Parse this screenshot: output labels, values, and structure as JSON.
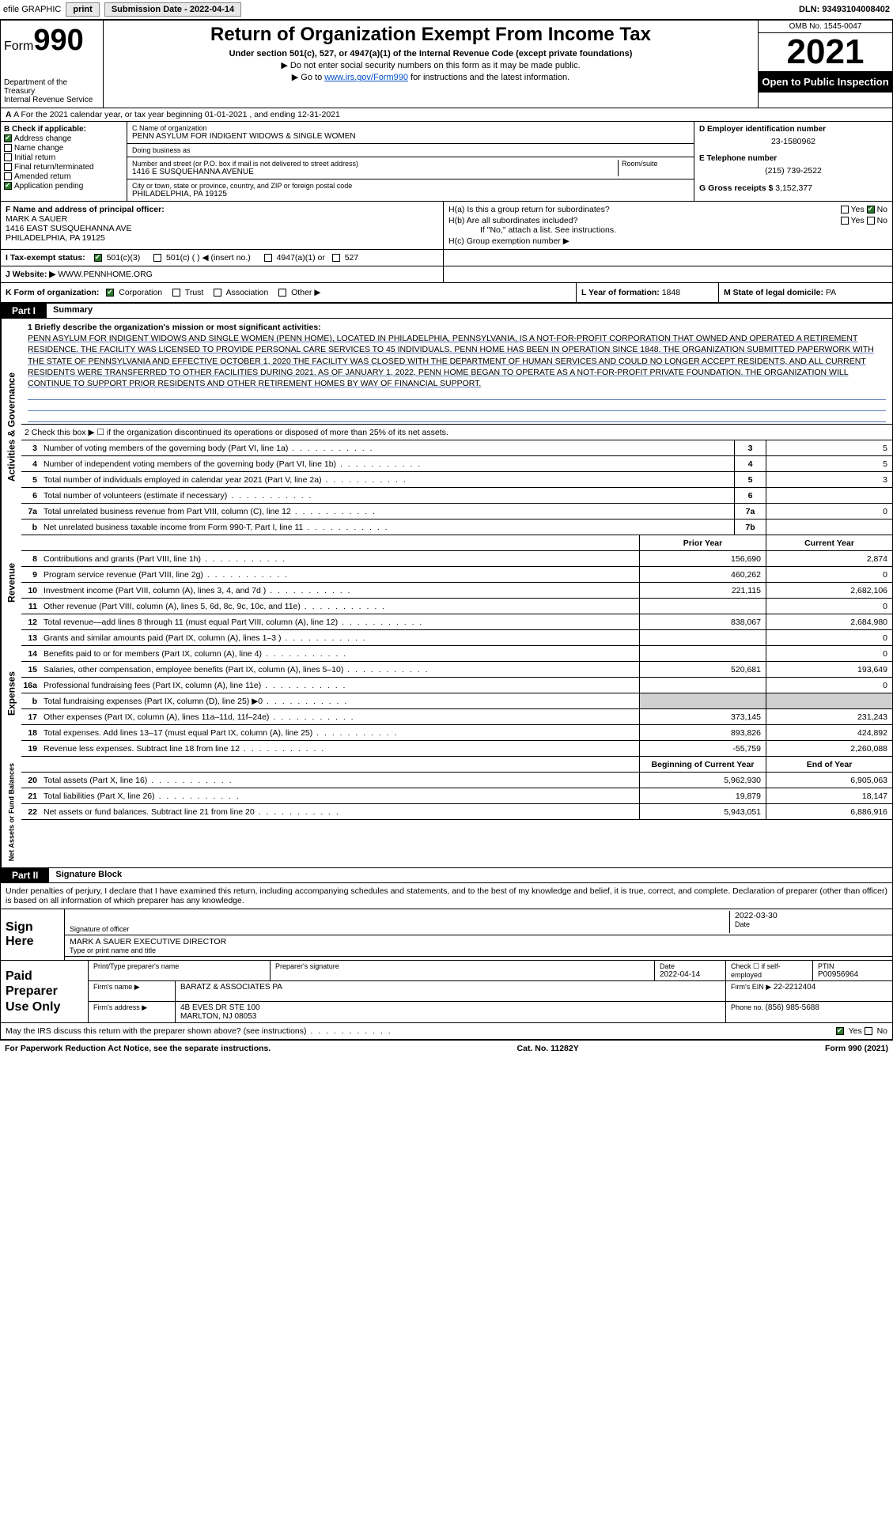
{
  "topbar": {
    "efile": "efile GRAPHIC",
    "print": "print",
    "subdate_lbl": "Submission Date - ",
    "subdate": "2022-04-14",
    "dln_lbl": "DLN: ",
    "dln": "93493104008402"
  },
  "header": {
    "form_prefix": "Form",
    "form_no": "990",
    "dept": "Department of the Treasury",
    "irs": "Internal Revenue Service",
    "title": "Return of Organization Exempt From Income Tax",
    "sub1": "Under section 501(c), 527, or 4947(a)(1) of the Internal Revenue Code (except private foundations)",
    "sub2a": "▶ Do not enter social security numbers on this form as it may be made public.",
    "sub2b_pre": "▶ Go to ",
    "sub2b_link": "www.irs.gov/Form990",
    "sub2b_post": " for instructions and the latest information.",
    "omb": "OMB No. 1545-0047",
    "year": "2021",
    "openpub": "Open to Public Inspection"
  },
  "rowA": "A For the 2021 calendar year, or tax year beginning 01-01-2021   , and ending 12-31-2021",
  "colB": {
    "hdr": "B Check if applicable:",
    "addr": "Address change",
    "name": "Name change",
    "init": "Initial return",
    "final": "Final return/terminated",
    "amend": "Amended return",
    "app": "Application pending"
  },
  "colC": {
    "name_lbl": "C Name of organization",
    "name": "PENN ASYLUM FOR INDIGENT WIDOWS & SINGLE WOMEN",
    "dba_lbl": "Doing business as",
    "dba": "",
    "street_lbl": "Number and street (or P.O. box if mail is not delivered to street address)",
    "room_lbl": "Room/suite",
    "street": "1416 E SUSQUEHANNA AVENUE",
    "city_lbl": "City or town, state or province, country, and ZIP or foreign postal code",
    "city": "PHILADELPHIA, PA  19125"
  },
  "colD": {
    "ein_lbl": "D Employer identification number",
    "ein": "23-1580962",
    "tel_lbl": "E Telephone number",
    "tel": "(215) 739-2522",
    "gross_lbl": "G Gross receipts $ ",
    "gross": "3,152,377"
  },
  "blkF": {
    "f_lbl": "F Name and address of principal officer:",
    "f_name": "MARK A SAUER",
    "f_addr1": "1416 EAST SUSQUEHANNA AVE",
    "f_addr2": "PHILADELPHIA, PA  19125",
    "ha": "H(a)  Is this a group return for subordinates?",
    "hb": "H(b)  Are all subordinates included?",
    "hnote": "If \"No,\" attach a list. See instructions.",
    "hc": "H(c)  Group exemption number ▶",
    "yes": "Yes",
    "no": "No"
  },
  "blkI": {
    "lbl": "I  Tax-exempt status:",
    "o1": "501(c)(3)",
    "o2": "501(c) (  ) ◀ (insert no.)",
    "o3": "4947(a)(1) or",
    "o4": "527"
  },
  "blkJ": {
    "lbl": "J  Website: ▶",
    "val": "WWW.PENNHOME.ORG"
  },
  "blkK": {
    "lbl": "K Form of organization:",
    "corp": "Corporation",
    "trust": "Trust",
    "assoc": "Association",
    "other": "Other ▶",
    "L_lbl": "L Year of formation: ",
    "L_val": "1848",
    "M_lbl": "M State of legal domicile: ",
    "M_val": "PA"
  },
  "part1": {
    "hdr": "Part I",
    "title": "Summary",
    "vtab_ag": "Activities & Governance",
    "vtab_rev": "Revenue",
    "vtab_exp": "Expenses",
    "vtab_net": "Net Assets or Fund Balances",
    "l1_lbl": "1  Briefly describe the organization's mission or most significant activities:",
    "l1_text": "PENN ASYLUM FOR INDIGENT WIDOWS AND SINGLE WOMEN (PENN HOME), LOCATED IN PHILADELPHIA, PENNSYLVANIA, IS A NOT-FOR-PROFIT CORPORATION THAT OWNED AND OPERATED A RETIREMENT RESIDENCE. THE FACILITY WAS LICENSED TO PROVIDE PERSONAL CARE SERVICES TO 45 INDIVIDUALS. PENN HOME HAS BEEN IN OPERATION SINCE 1848. THE ORGANIZATION SUBMITTED PAPERWORK WITH THE STATE OF PENNSYLVANIA AND EFFECTIVE OCTOBER 1, 2020 THE FACILITY WAS CLOSED WITH THE DEPARTMENT OF HUMAN SERVICES AND COULD NO LONGER ACCEPT RESIDENTS, AND ALL CURRENT RESIDENTS WERE TRANSFERRED TO OTHER FACILITIES DURING 2021. AS OF JANUARY 1, 2022, PENN HOME BEGAN TO OPERATE AS A NOT-FOR-PROFIT PRIVATE FOUNDATION. THE ORGANIZATION WILL CONTINUE TO SUPPORT PRIOR RESIDENTS AND OTHER RETIREMENT HOMES BY WAY OF FINANCIAL SUPPORT.",
    "l2": "2  Check this box ▶ ☐ if the organization discontinued its operations or disposed of more than 25% of its net assets.",
    "prior": "Prior Year",
    "current": "Current Year",
    "boy": "Beginning of Current Year",
    "eoy": "End of Year",
    "lines_ag": [
      {
        "n": "3",
        "d": "Number of voting members of the governing body (Part VI, line 1a)",
        "b": "3",
        "v": "5"
      },
      {
        "n": "4",
        "d": "Number of independent voting members of the governing body (Part VI, line 1b)",
        "b": "4",
        "v": "5"
      },
      {
        "n": "5",
        "d": "Total number of individuals employed in calendar year 2021 (Part V, line 2a)",
        "b": "5",
        "v": "3"
      },
      {
        "n": "6",
        "d": "Total number of volunteers (estimate if necessary)",
        "b": "6",
        "v": ""
      },
      {
        "n": "7a",
        "d": "Total unrelated business revenue from Part VIII, column (C), line 12",
        "b": "7a",
        "v": "0"
      },
      {
        "n": "b",
        "d": "Net unrelated business taxable income from Form 990-T, Part I, line 11",
        "b": "7b",
        "v": ""
      }
    ],
    "lines_rev": [
      {
        "n": "8",
        "d": "Contributions and grants (Part VIII, line 1h)",
        "p": "156,690",
        "c": "2,874"
      },
      {
        "n": "9",
        "d": "Program service revenue (Part VIII, line 2g)",
        "p": "460,262",
        "c": "0"
      },
      {
        "n": "10",
        "d": "Investment income (Part VIII, column (A), lines 3, 4, and 7d )",
        "p": "221,115",
        "c": "2,682,106"
      },
      {
        "n": "11",
        "d": "Other revenue (Part VIII, column (A), lines 5, 6d, 8c, 9c, 10c, and 11e)",
        "p": "",
        "c": "0"
      },
      {
        "n": "12",
        "d": "Total revenue—add lines 8 through 11 (must equal Part VIII, column (A), line 12)",
        "p": "838,067",
        "c": "2,684,980"
      }
    ],
    "lines_exp": [
      {
        "n": "13",
        "d": "Grants and similar amounts paid (Part IX, column (A), lines 1–3 )",
        "p": "",
        "c": "0"
      },
      {
        "n": "14",
        "d": "Benefits paid to or for members (Part IX, column (A), line 4)",
        "p": "",
        "c": "0"
      },
      {
        "n": "15",
        "d": "Salaries, other compensation, employee benefits (Part IX, column (A), lines 5–10)",
        "p": "520,681",
        "c": "193,649"
      },
      {
        "n": "16a",
        "d": "Professional fundraising fees (Part IX, column (A), line 11e)",
        "p": "",
        "c": "0"
      },
      {
        "n": "b",
        "d": "Total fundraising expenses (Part IX, column (D), line 25) ▶0",
        "p": "grey",
        "c": "grey"
      },
      {
        "n": "17",
        "d": "Other expenses (Part IX, column (A), lines 11a–11d, 11f–24e)",
        "p": "373,145",
        "c": "231,243"
      },
      {
        "n": "18",
        "d": "Total expenses. Add lines 13–17 (must equal Part IX, column (A), line 25)",
        "p": "893,826",
        "c": "424,892"
      },
      {
        "n": "19",
        "d": "Revenue less expenses. Subtract line 18 from line 12",
        "p": "-55,759",
        "c": "2,260,088"
      }
    ],
    "lines_net": [
      {
        "n": "20",
        "d": "Total assets (Part X, line 16)",
        "p": "5,962,930",
        "c": "6,905,063"
      },
      {
        "n": "21",
        "d": "Total liabilities (Part X, line 26)",
        "p": "19,879",
        "c": "18,147"
      },
      {
        "n": "22",
        "d": "Net assets or fund balances. Subtract line 21 from line 20",
        "p": "5,943,051",
        "c": "6,886,916"
      }
    ]
  },
  "part2": {
    "hdr": "Part II",
    "title": "Signature Block",
    "decl": "Under penalties of perjury, I declare that I have examined this return, including accompanying schedules and statements, and to the best of my knowledge and belief, it is true, correct, and complete. Declaration of preparer (other than officer) is based on all information of which preparer has any knowledge.",
    "sign_here": "Sign Here",
    "sig_off": "Signature of officer",
    "sig_date": "2022-03-30",
    "date_lbl": "Date",
    "officer": "MARK A SAUER  EXECUTIVE DIRECTOR",
    "type_lbl": "Type or print name and title",
    "paid": "Paid Preparer Use Only",
    "p_name_lbl": "Print/Type preparer's name",
    "p_sig_lbl": "Preparer's signature",
    "p_date_lbl": "Date",
    "p_date": "2022-04-14",
    "p_check": "Check ☐ if self-employed",
    "ptin_lbl": "PTIN",
    "ptin": "P00956964",
    "firm_name_lbl": "Firm's name    ▶",
    "firm_name": "BARATZ & ASSOCIATES PA",
    "firm_ein_lbl": "Firm's EIN ▶",
    "firm_ein": "22-2212404",
    "firm_addr_lbl": "Firm's address ▶",
    "firm_addr1": "4B EVES DR STE 100",
    "firm_addr2": "MARLTON, NJ  08053",
    "phone_lbl": "Phone no. ",
    "phone": "(856) 985-5688",
    "discuss": "May the IRS discuss this return with the preparer shown above? (see instructions)",
    "yes": "Yes",
    "no": "No"
  },
  "footer": {
    "left": "For Paperwork Reduction Act Notice, see the separate instructions.",
    "mid": "Cat. No. 11282Y",
    "right": "Form 990 (2021)"
  }
}
